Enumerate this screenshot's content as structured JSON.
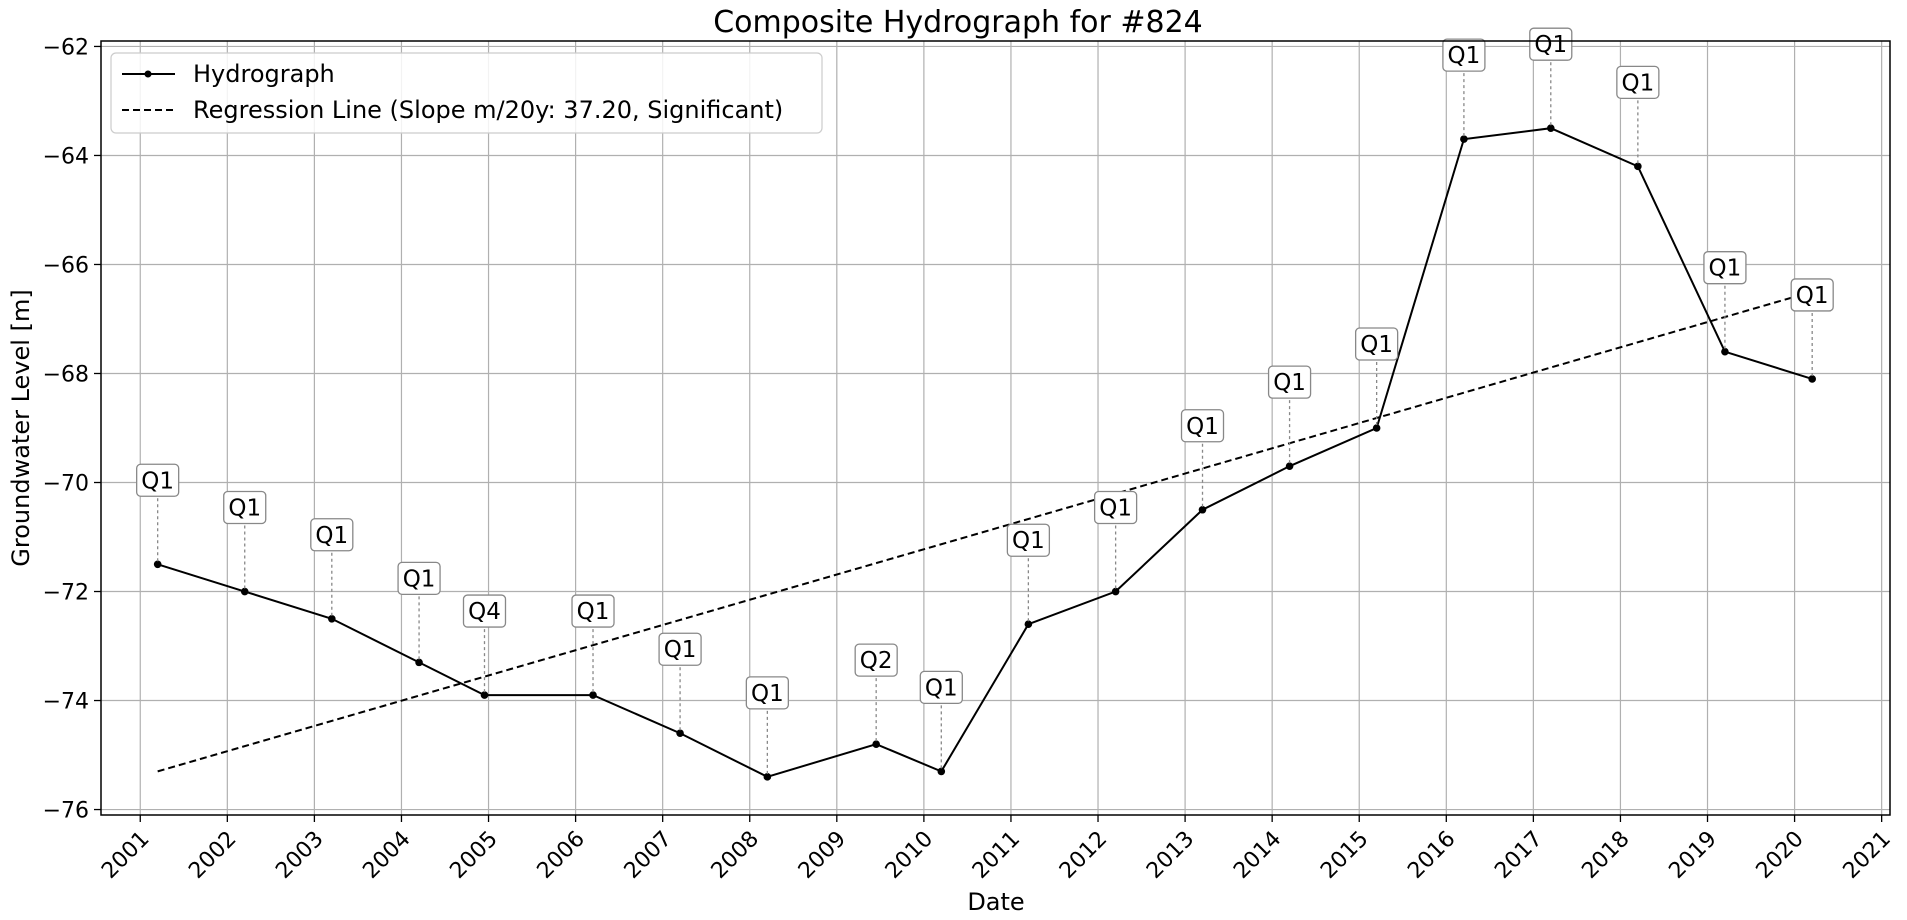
{
  "chart_data": {
    "type": "line",
    "title": "Composite Hydrograph for  #824",
    "xlabel": "Date",
    "ylabel": "Groundwater Level [m]",
    "grid": true,
    "legend_position": "top-left",
    "x_ticks": [
      "2001",
      "2002",
      "2003",
      "2004",
      "2005",
      "2006",
      "2007",
      "2008",
      "2009",
      "2010",
      "2011",
      "2012",
      "2013",
      "2014",
      "2015",
      "2016",
      "2017",
      "2018",
      "2019",
      "2020",
      "2021"
    ],
    "y_ticks": [
      -62,
      -64,
      -66,
      -68,
      -70,
      -72,
      -74,
      -76
    ],
    "xlim": [
      "2000-07-20",
      "2021-02-05"
    ],
    "ylim": [
      -76.1,
      -61.9
    ],
    "series": [
      {
        "name": "Hydrograph",
        "style": "solid",
        "marker": "dot",
        "color": "#000000",
        "points": [
          {
            "date": "2001-03-15",
            "value": -71.5,
            "label": "Q1"
          },
          {
            "date": "2002-03-15",
            "value": -72.0,
            "label": "Q1"
          },
          {
            "date": "2003-03-15",
            "value": -72.5,
            "label": "Q1"
          },
          {
            "date": "2004-03-15",
            "value": -73.3,
            "label": "Q1"
          },
          {
            "date": "2004-12-15",
            "value": -73.9,
            "label": "Q4"
          },
          {
            "date": "2006-03-15",
            "value": -73.9,
            "label": "Q1"
          },
          {
            "date": "2007-03-15",
            "value": -74.6,
            "label": "Q1"
          },
          {
            "date": "2008-03-15",
            "value": -75.4,
            "label": "Q1"
          },
          {
            "date": "2009-06-15",
            "value": -74.8,
            "label": "Q2"
          },
          {
            "date": "2010-03-15",
            "value": -75.3,
            "label": "Q1"
          },
          {
            "date": "2011-03-15",
            "value": -72.6,
            "label": "Q1"
          },
          {
            "date": "2012-03-15",
            "value": -72.0,
            "label": "Q1"
          },
          {
            "date": "2013-03-15",
            "value": -70.5,
            "label": "Q1"
          },
          {
            "date": "2014-03-15",
            "value": -69.7,
            "label": "Q1"
          },
          {
            "date": "2015-03-15",
            "value": -69.0,
            "label": "Q1"
          },
          {
            "date": "2016-03-15",
            "value": -63.7,
            "label": "Q1"
          },
          {
            "date": "2017-03-15",
            "value": -63.5,
            "label": "Q1"
          },
          {
            "date": "2018-03-15",
            "value": -64.2,
            "label": "Q1"
          },
          {
            "date": "2019-03-15",
            "value": -67.6,
            "label": "Q1"
          },
          {
            "date": "2020-03-15",
            "value": -68.1,
            "label": "Q1"
          }
        ]
      },
      {
        "name": "Regression Line (Slope m/20y: 37.20, Significant)",
        "style": "dashed",
        "color": "#000000",
        "points": [
          {
            "date": "2001-03-15",
            "value": -75.3
          },
          {
            "date": "2020-03-15",
            "value": -66.5
          }
        ]
      }
    ]
  }
}
